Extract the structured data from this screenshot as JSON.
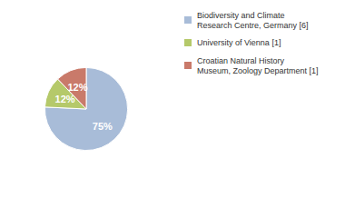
{
  "chart_data": {
    "type": "pie",
    "categories": [
      "Biodiversity and Climate\nResearch Centre, Germany [6]",
      "University of Vienna [1]",
      "Croatian Natural History\nMuseum, Zoology Department [1]"
    ],
    "values": [
      75,
      12,
      12
    ],
    "value_labels": [
      "75%",
      "12%",
      "12%"
    ],
    "colors": [
      "#a8bcd8",
      "#b5c96a",
      "#c97a6a"
    ],
    "data_labels": true,
    "legend": "upper right"
  }
}
